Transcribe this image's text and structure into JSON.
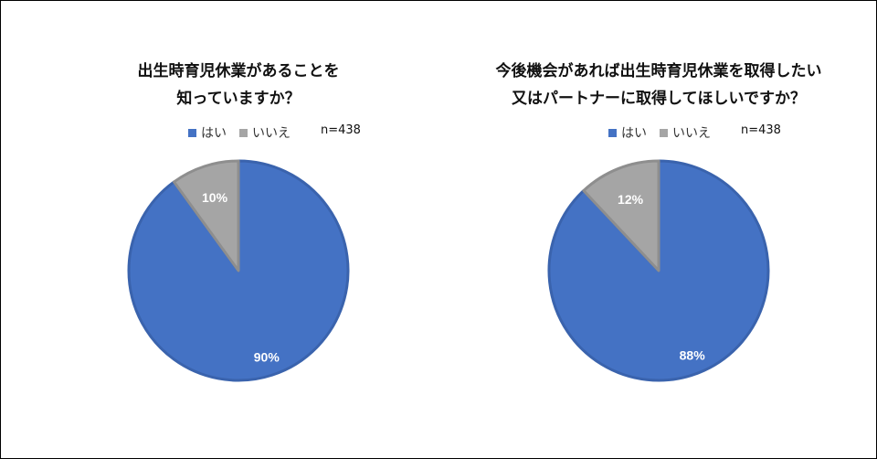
{
  "chart_data": [
    {
      "type": "pie",
      "title_lines": [
        "出生時育児休業があることを",
        "知っていますか？"
      ],
      "n_label": "n=438",
      "categories": [
        "はい",
        "いいえ"
      ],
      "values": [
        90,
        10
      ],
      "labels": [
        "90%",
        "10%"
      ],
      "colors": [
        "#4472C4",
        "#A5A5A5"
      ]
    },
    {
      "type": "pie",
      "title_lines": [
        "今後機会があれば出生時育児休業を取得したい",
        "又はパートナーに取得してほしいですか？"
      ],
      "n_label": "n=438",
      "categories": [
        "はい",
        "いいえ"
      ],
      "values": [
        88,
        12
      ],
      "labels": [
        "88%",
        "12%"
      ],
      "colors": [
        "#4472C4",
        "#A5A5A5"
      ]
    }
  ]
}
